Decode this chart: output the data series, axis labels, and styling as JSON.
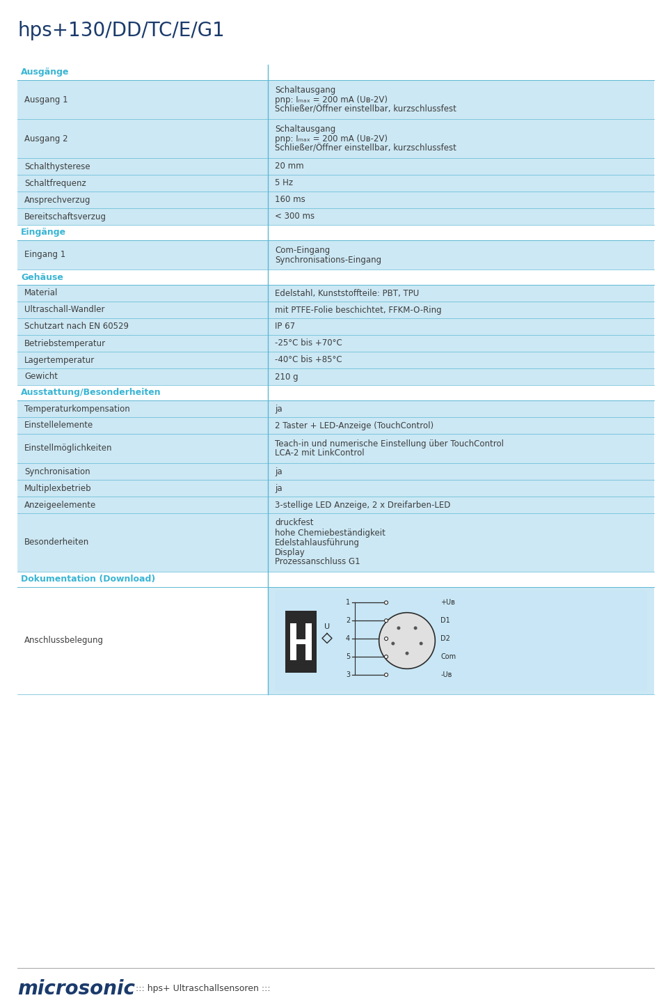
{
  "title": "hps+130/DD/TC/E/G1",
  "title_color": "#1a3a6b",
  "title_fontsize": 20,
  "bg_color": "#ffffff",
  "table_bg_light": "#cce8f4",
  "table_bg_white": "#e8f4fb",
  "header_color": "#3ab5d4",
  "text_color": "#3d3d3d",
  "divider_color": "#5bb8d4",
  "col_split": 0.395,
  "footer_text": "::: hps+ Ultraschallsensoren :::",
  "footer_logo": "microsonic",
  "sections": [
    {
      "type": "header",
      "label": "Ausgänge",
      "lines": 1
    },
    {
      "type": "row",
      "label": "Ausgang 1",
      "value": "Schaltausgang\npnp: Iₘₐₓ = 200 mA (Uʙ-2V)\nSchließer/Öffner einstellbar, kurzschlussfest",
      "bg": "light",
      "lines": 3
    },
    {
      "type": "row",
      "label": "Ausgang 2",
      "value": "Schaltausgang\npnp: Iₘₐₓ = 200 mA (Uʙ-2V)\nSchließer/Öffner einstellbar, kurzschlussfest",
      "bg": "light",
      "lines": 3
    },
    {
      "type": "row",
      "label": "Schalthysterese",
      "value": "20 mm",
      "bg": "light",
      "lines": 1
    },
    {
      "type": "row",
      "label": "Schaltfrequenz",
      "value": "5 Hz",
      "bg": "light",
      "lines": 1
    },
    {
      "type": "row",
      "label": "Ansprechverzug",
      "value": "160 ms",
      "bg": "light",
      "lines": 1
    },
    {
      "type": "row",
      "label": "Bereitschaftsverzug",
      "value": "< 300 ms",
      "bg": "light",
      "lines": 1
    },
    {
      "type": "header",
      "label": "Eingänge",
      "lines": 1
    },
    {
      "type": "row",
      "label": "Eingang 1",
      "value": "Com-Eingang\nSynchronisations-Eingang",
      "bg": "light",
      "lines": 2
    },
    {
      "type": "header",
      "label": "Gehäuse",
      "lines": 1
    },
    {
      "type": "row",
      "label": "Material",
      "value": "Edelstahl, Kunststoffteile: PBT, TPU",
      "bg": "light",
      "lines": 1
    },
    {
      "type": "row",
      "label": "Ultraschall-Wandler",
      "value": "mit PTFE-Folie beschichtet, FFKM-O-Ring",
      "bg": "light",
      "lines": 1
    },
    {
      "type": "row",
      "label": "Schutzart nach EN 60529",
      "value": "IP 67",
      "bg": "light",
      "lines": 1
    },
    {
      "type": "row",
      "label": "Betriebstemperatur",
      "value": "-25°C bis +70°C",
      "bg": "light",
      "lines": 1
    },
    {
      "type": "row",
      "label": "Lagertemperatur",
      "value": "-40°C bis +85°C",
      "bg": "light",
      "lines": 1
    },
    {
      "type": "row",
      "label": "Gewicht",
      "value": "210 g",
      "bg": "light",
      "lines": 1
    },
    {
      "type": "header",
      "label": "Ausstattung/Besonderheiten",
      "lines": 1
    },
    {
      "type": "row",
      "label": "Temperaturkompensation",
      "value": "ja",
      "bg": "light",
      "lines": 1
    },
    {
      "type": "row",
      "label": "Einstellelemente",
      "value": "2 Taster + LED-Anzeige (TouchControl)",
      "bg": "light",
      "lines": 1
    },
    {
      "type": "row",
      "label": "Einstellmöglichkeiten",
      "value": "Teach-in und numerische Einstellung über TouchControl\nLCA-2 mit LinkControl",
      "bg": "light",
      "lines": 2
    },
    {
      "type": "row",
      "label": "Synchronisation",
      "value": "ja",
      "bg": "light",
      "lines": 1
    },
    {
      "type": "row",
      "label": "Multiplexbetrieb",
      "value": "ja",
      "bg": "light",
      "lines": 1
    },
    {
      "type": "row",
      "label": "Anzeigeelemente",
      "value": "3-stellige LED Anzeige, 2 x Dreifarben-LED",
      "bg": "light",
      "lines": 1
    },
    {
      "type": "row",
      "label": "Besonderheiten",
      "value": "druckfest\nhohe Chemiebeständigkeit\nEdelstahlausführung\nDisplay\nProzessanschluss G1",
      "bg": "light",
      "lines": 5
    },
    {
      "type": "header",
      "label": "Dokumentation (Download)",
      "lines": 1
    },
    {
      "type": "row_image",
      "label": "Anschlussbelegung",
      "bg": "light",
      "lines": 5
    }
  ]
}
